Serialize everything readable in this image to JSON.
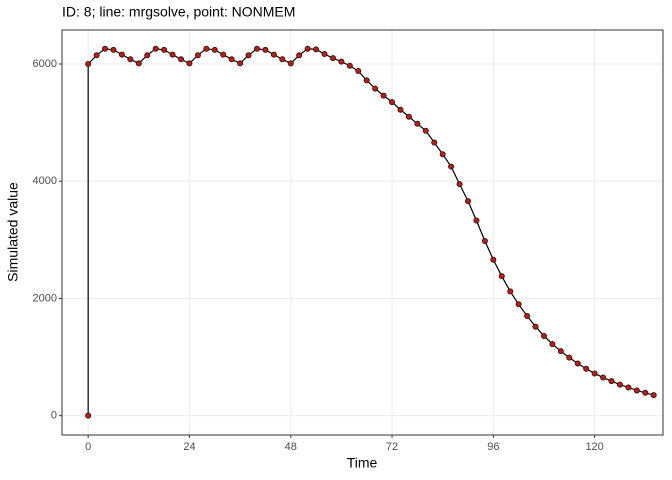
{
  "chart_data": {
    "type": "line",
    "title": "ID: 8; line: mrgsolve, point: NONMEM",
    "x_label": "Time",
    "y_label": "Simulated value",
    "x": [
      0,
      0,
      2,
      4,
      6,
      8,
      10,
      12,
      14,
      16,
      18,
      20,
      22,
      24,
      26,
      28,
      30,
      32,
      34,
      36,
      38,
      40,
      42,
      44,
      46,
      48,
      50,
      52,
      54,
      56,
      58,
      60,
      62,
      64,
      66,
      68,
      70,
      72,
      74,
      76,
      78,
      80,
      82,
      84,
      86,
      88,
      90,
      92,
      94,
      96,
      98,
      100,
      102,
      104,
      106,
      108,
      110,
      112,
      114,
      116,
      118,
      120,
      122,
      124,
      126,
      128,
      130,
      132,
      134
    ],
    "series": [
      {
        "values": [
          0,
          6000,
          6150,
          6260,
          6240,
          6160,
          6080,
          6010,
          6150,
          6260,
          6240,
          6160,
          6080,
          6010,
          6150,
          6260,
          6240,
          6160,
          6080,
          6010,
          6150,
          6260,
          6240,
          6160,
          6080,
          6010,
          6150,
          6260,
          6250,
          6170,
          6100,
          6040,
          5970,
          5880,
          5720,
          5580,
          5460,
          5350,
          5220,
          5100,
          4980,
          4860,
          4660,
          4460,
          4250,
          3950,
          3660,
          3330,
          2980,
          2660,
          2380,
          2120,
          1900,
          1700,
          1520,
          1360,
          1220,
          1100,
          990,
          890,
          800,
          720,
          650,
          590,
          530,
          480,
          430,
          390,
          350
        ],
        "color": "#000000",
        "point_color": "#b2221b"
      }
    ],
    "xlim": [
      -6.2,
      136.2
    ],
    "ylim": [
      -330,
      6580
    ],
    "xticks": [
      0,
      24,
      48,
      72,
      96,
      120
    ],
    "yticks": [
      0,
      2000,
      4000,
      6000
    ],
    "grid": true
  }
}
